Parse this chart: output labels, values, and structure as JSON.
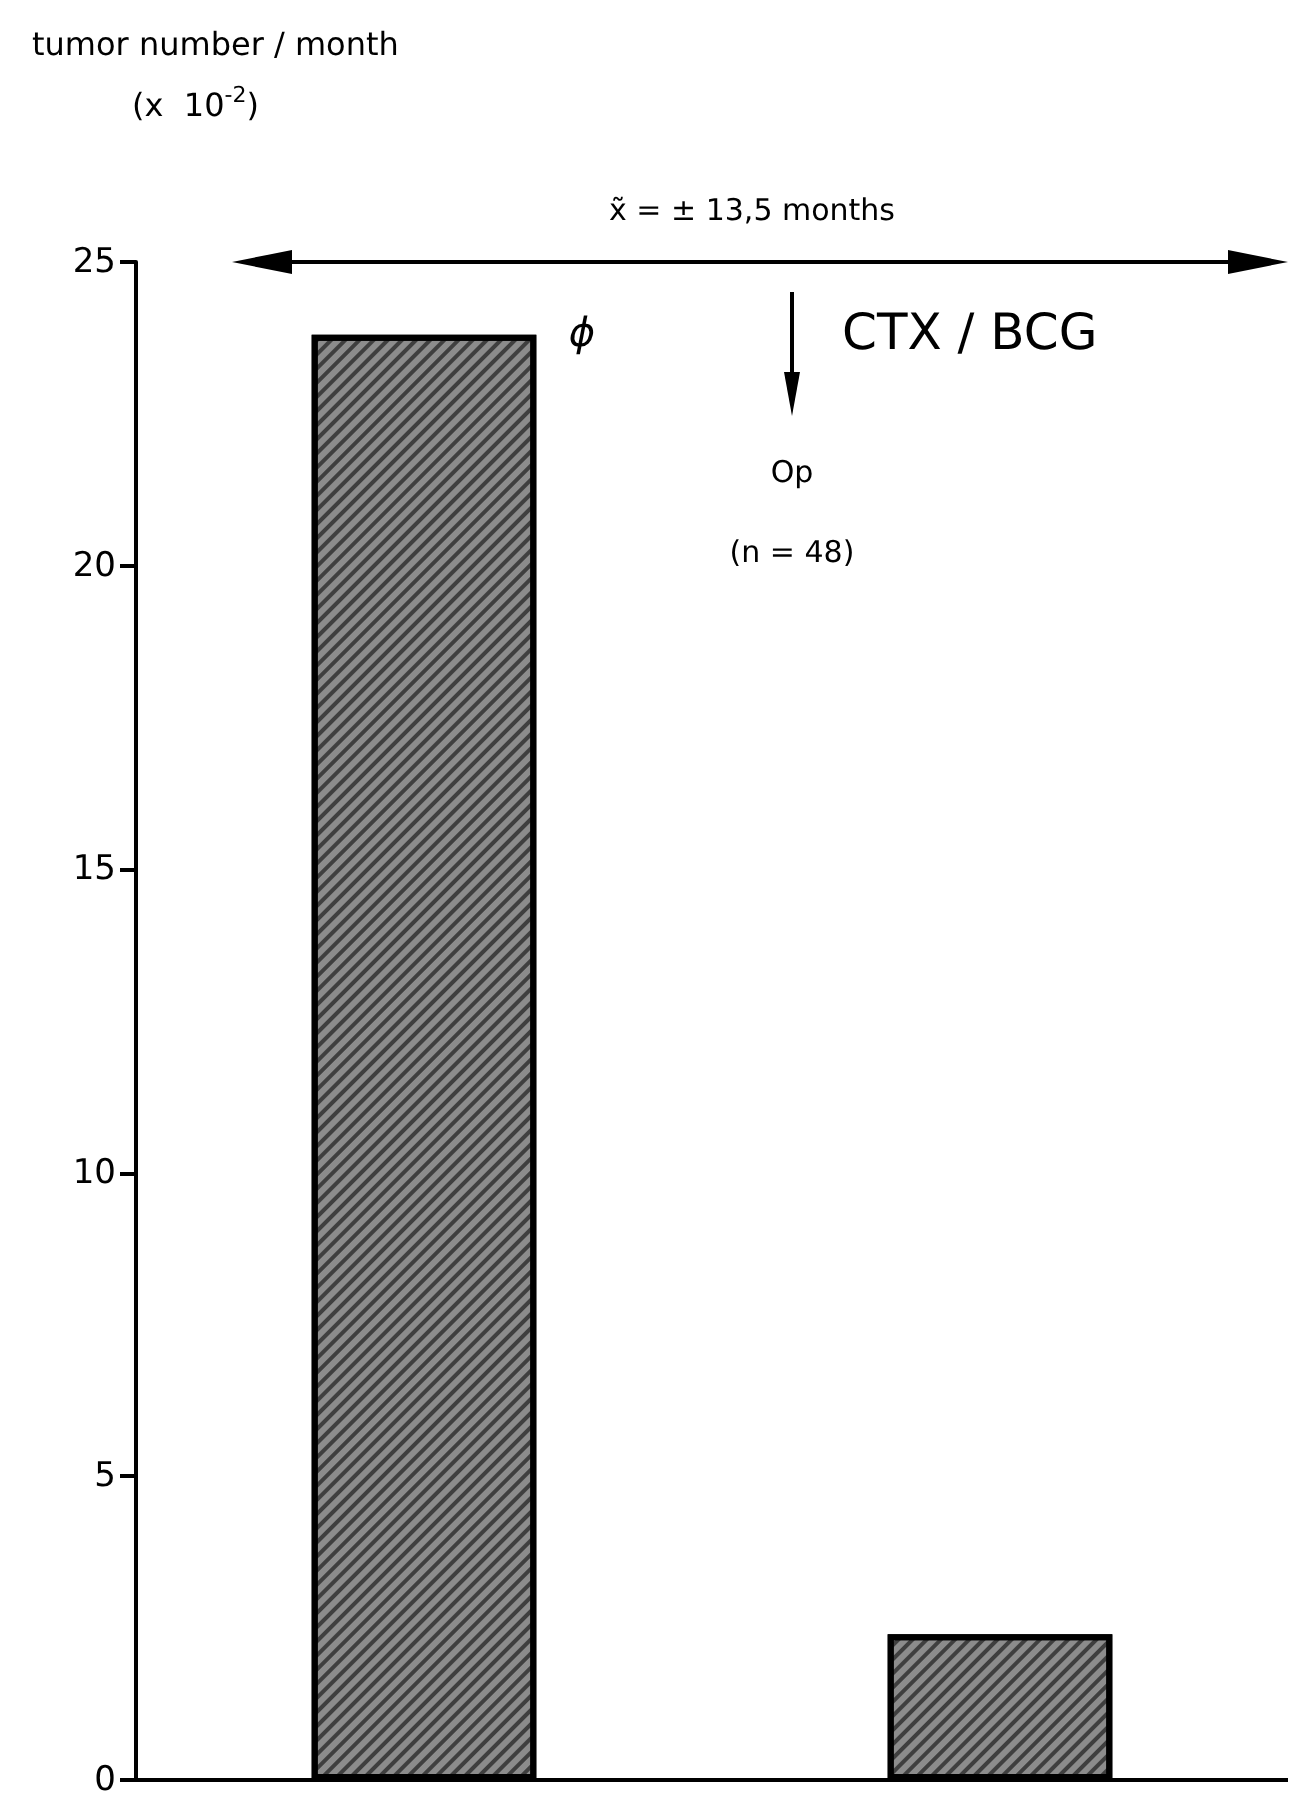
{
  "chart_data": {
    "type": "bar",
    "ylabel": "tumor number / month\n(x  10$^{-2}$)",
    "categories": [
      null,
      null
    ],
    "values": [
      23.8,
      2.4
    ],
    "color": "#8c8c8c",
    "ylim": [
      0,
      25
    ],
    "yticks": [
      0,
      5,
      10,
      15,
      20,
      25
    ],
    "grid": false,
    "tick_labels": "y",
    "annotations": [
      "x̃ = ± 13,5 months",
      "ϕ",
      "CTX / BCG",
      "Op",
      "(n = 48)"
    ]
  }
}
